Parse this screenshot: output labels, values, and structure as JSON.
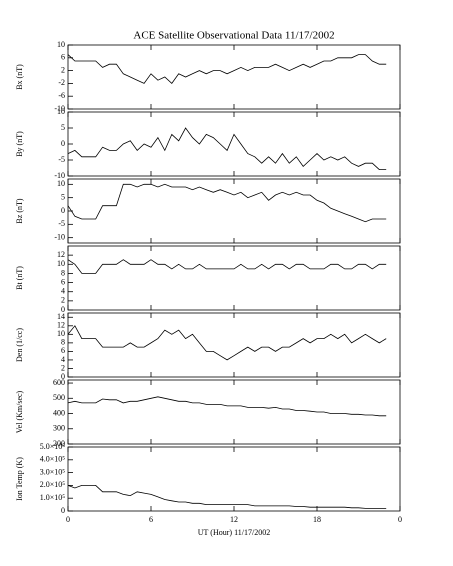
{
  "chart_data": [
    {
      "type": "line",
      "title": "ACE Satellite Observational Data   11/17/2002",
      "ylabel": "Bx (nT)",
      "color": "#000000",
      "xlim": [
        0,
        24
      ],
      "ylim": [
        -10,
        10
      ],
      "yticks": [
        -10,
        -6,
        -2,
        2,
        6,
        10
      ],
      "x": [
        0,
        0.5,
        1,
        1.5,
        2,
        2.5,
        3,
        3.5,
        4,
        4.5,
        5,
        5.5,
        6,
        6.5,
        7,
        7.5,
        8,
        8.5,
        9,
        9.5,
        10,
        10.5,
        11,
        11.5,
        12,
        12.5,
        13,
        13.5,
        14,
        14.5,
        15,
        15.5,
        16,
        16.5,
        17,
        17.5,
        18,
        18.5,
        19,
        19.5,
        20,
        20.5,
        21,
        21.5,
        22,
        22.5,
        23
      ],
      "values": [
        7,
        5,
        5,
        5,
        5,
        3,
        4,
        4,
        1,
        0,
        -1,
        -2,
        1,
        -1,
        0,
        -2,
        1,
        0,
        1,
        2,
        1,
        2,
        2,
        1,
        2,
        3,
        2,
        3,
        3,
        3,
        4,
        3,
        2,
        3,
        4,
        3,
        4,
        5,
        5,
        6,
        6,
        6,
        7,
        7,
        5,
        4,
        4
      ]
    },
    {
      "type": "line",
      "ylabel": "By (nT)",
      "color": "#000000",
      "xlim": [
        0,
        24
      ],
      "ylim": [
        -10,
        10
      ],
      "yticks": [
        -10,
        -5,
        0,
        5,
        10
      ],
      "x": [
        0,
        0.5,
        1,
        1.5,
        2,
        2.5,
        3,
        3.5,
        4,
        4.5,
        5,
        5.5,
        6,
        6.5,
        7,
        7.5,
        8,
        8.5,
        9,
        9.5,
        10,
        10.5,
        11,
        11.5,
        12,
        12.5,
        13,
        13.5,
        14,
        14.5,
        15,
        15.5,
        16,
        16.5,
        17,
        17.5,
        18,
        18.5,
        19,
        19.5,
        20,
        20.5,
        21,
        21.5,
        22,
        22.5,
        23
      ],
      "values": [
        -3,
        -2,
        -4,
        -4,
        -4,
        -1,
        -2,
        -2,
        0,
        1,
        -2,
        0,
        -1,
        2,
        -2,
        3,
        1,
        5,
        2,
        0,
        3,
        2,
        0,
        -2,
        3,
        0,
        -3,
        -4,
        -6,
        -4,
        -6,
        -3,
        -6,
        -4,
        -7,
        -5,
        -3,
        -5,
        -4,
        -5,
        -4,
        -6,
        -7,
        -6,
        -6,
        -8,
        -8
      ]
    },
    {
      "type": "line",
      "ylabel": "Bz (nT)",
      "color": "#000000",
      "xlim": [
        0,
        24
      ],
      "ylim": [
        -12,
        12
      ],
      "yticks": [
        -10,
        -5,
        0,
        5,
        10
      ],
      "x": [
        0,
        0.5,
        1,
        1.5,
        2,
        2.5,
        3,
        3.5,
        4,
        4.5,
        5,
        5.5,
        6,
        6.5,
        7,
        7.5,
        8,
        8.5,
        9,
        9.5,
        10,
        10.5,
        11,
        11.5,
        12,
        12.5,
        13,
        13.5,
        14,
        14.5,
        15,
        15.5,
        16,
        16.5,
        17,
        17.5,
        18,
        18.5,
        19,
        19.5,
        20,
        20.5,
        21,
        21.5,
        22,
        22.5,
        23
      ],
      "values": [
        2,
        -2,
        -3,
        -3,
        -3,
        2,
        2,
        2,
        10,
        10,
        9,
        10,
        10,
        9,
        10,
        9,
        9,
        9,
        8,
        9,
        8,
        7,
        8,
        7,
        6,
        7,
        5,
        6,
        7,
        4,
        6,
        7,
        6,
        7,
        6,
        6,
        4,
        3,
        1,
        0,
        -1,
        -2,
        -3,
        -4,
        -3,
        -3,
        -3
      ]
    },
    {
      "type": "line",
      "ylabel": "Bt (nT)",
      "color": "#000000",
      "xlim": [
        0,
        24
      ],
      "ylim": [
        0,
        14
      ],
      "yticks": [
        0,
        2,
        4,
        6,
        8,
        10,
        12
      ],
      "x": [
        0,
        0.5,
        1,
        1.5,
        2,
        2.5,
        3,
        3.5,
        4,
        4.5,
        5,
        5.5,
        6,
        6.5,
        7,
        7.5,
        8,
        8.5,
        9,
        9.5,
        10,
        10.5,
        11,
        11.5,
        12,
        12.5,
        13,
        13.5,
        14,
        14.5,
        15,
        15.5,
        16,
        16.5,
        17,
        17.5,
        18,
        18.5,
        19,
        19.5,
        20,
        20.5,
        21,
        21.5,
        22,
        22.5,
        23
      ],
      "values": [
        11,
        10,
        8,
        8,
        8,
        10,
        10,
        10,
        11,
        10,
        10,
        10,
        11,
        10,
        10,
        9,
        10,
        9,
        9,
        10,
        9,
        9,
        9,
        9,
        9,
        10,
        9,
        9,
        10,
        9,
        10,
        10,
        9,
        10,
        10,
        9,
        9,
        9,
        10,
        10,
        9,
        9,
        10,
        10,
        9,
        10,
        10
      ]
    },
    {
      "type": "line",
      "ylabel": "Den (1/cc)",
      "color": "#000000",
      "xlim": [
        0,
        24
      ],
      "ylim": [
        0,
        15
      ],
      "yticks": [
        0,
        2,
        4,
        6,
        8,
        10,
        12,
        14
      ],
      "x": [
        0,
        0.5,
        1,
        1.5,
        2,
        2.5,
        3,
        3.5,
        4,
        4.5,
        5,
        5.5,
        6,
        6.5,
        7,
        7.5,
        8,
        8.5,
        9,
        9.5,
        10,
        10.5,
        11,
        11.5,
        12,
        12.5,
        13,
        13.5,
        14,
        14.5,
        15,
        15.5,
        16,
        16.5,
        17,
        17.5,
        18,
        18.5,
        19,
        19.5,
        20,
        20.5,
        21,
        21.5,
        22,
        22.5,
        23
      ],
      "values": [
        10,
        12,
        9,
        9,
        9,
        7,
        7,
        7,
        7,
        8,
        7,
        7,
        8,
        9,
        11,
        10,
        11,
        9,
        10,
        8,
        6,
        6,
        5,
        4,
        5,
        6,
        7,
        6,
        7,
        7,
        6,
        7,
        7,
        8,
        9,
        8,
        9,
        9,
        10,
        9,
        10,
        8,
        9,
        10,
        9,
        8,
        9
      ]
    },
    {
      "type": "line",
      "ylabel": "Vel (Km/sec)",
      "color": "#000000",
      "xlim": [
        0,
        24
      ],
      "ylim": [
        200,
        620
      ],
      "yticks": [
        200,
        300,
        400,
        500,
        600
      ],
      "x": [
        0,
        0.5,
        1,
        1.5,
        2,
        2.5,
        3,
        3.5,
        4,
        4.5,
        5,
        5.5,
        6,
        6.5,
        7,
        7.5,
        8,
        8.5,
        9,
        9.5,
        10,
        10.5,
        11,
        11.5,
        12,
        12.5,
        13,
        13.5,
        14,
        14.5,
        15,
        15.5,
        16,
        16.5,
        17,
        17.5,
        18,
        18.5,
        19,
        19.5,
        20,
        20.5,
        21,
        21.5,
        22,
        22.5,
        23
      ],
      "values": [
        470,
        480,
        470,
        470,
        470,
        495,
        490,
        490,
        470,
        480,
        480,
        490,
        500,
        510,
        500,
        490,
        480,
        480,
        470,
        470,
        460,
        460,
        460,
        450,
        450,
        450,
        440,
        440,
        440,
        435,
        440,
        430,
        430,
        420,
        420,
        415,
        410,
        410,
        400,
        400,
        400,
        395,
        395,
        390,
        390,
        385,
        385
      ]
    },
    {
      "type": "line",
      "ylabel": "Ion Temp (K)",
      "xlabel": "UT (Hour)   11/17/2002",
      "color": "#000000",
      "xlim": [
        0,
        24
      ],
      "xticks": [
        0,
        6,
        12,
        18,
        {
          "value": 24,
          "label": "0"
        }
      ],
      "ylim": [
        0,
        500000
      ],
      "yticks": [
        0,
        {
          "value": 100000,
          "label": "1.0×10⁵"
        },
        {
          "value": 200000,
          "label": "2.0×10⁵"
        },
        {
          "value": 300000,
          "label": "3.0×10⁵"
        },
        {
          "value": 400000,
          "label": "4.0×10⁵"
        },
        {
          "value": 500000,
          "label": "5.0×10⁵"
        }
      ],
      "x": [
        0,
        0.5,
        1,
        1.5,
        2,
        2.5,
        3,
        3.5,
        4,
        4.5,
        5,
        5.5,
        6,
        6.5,
        7,
        7.5,
        8,
        8.5,
        9,
        9.5,
        10,
        10.5,
        11,
        11.5,
        12,
        12.5,
        13,
        13.5,
        14,
        14.5,
        15,
        15.5,
        16,
        16.5,
        17,
        17.5,
        18,
        18.5,
        19,
        19.5,
        20,
        20.5,
        21,
        21.5,
        22,
        22.5,
        23
      ],
      "values": [
        200000,
        180000,
        200000,
        200000,
        200000,
        150000,
        150000,
        150000,
        130000,
        120000,
        150000,
        140000,
        130000,
        110000,
        90000,
        80000,
        70000,
        70000,
        60000,
        60000,
        50000,
        50000,
        50000,
        50000,
        50000,
        50000,
        50000,
        40000,
        40000,
        40000,
        40000,
        40000,
        40000,
        35000,
        35000,
        30000,
        30000,
        30000,
        30000,
        30000,
        30000,
        25000,
        25000,
        20000,
        20000,
        20000,
        20000
      ]
    }
  ]
}
